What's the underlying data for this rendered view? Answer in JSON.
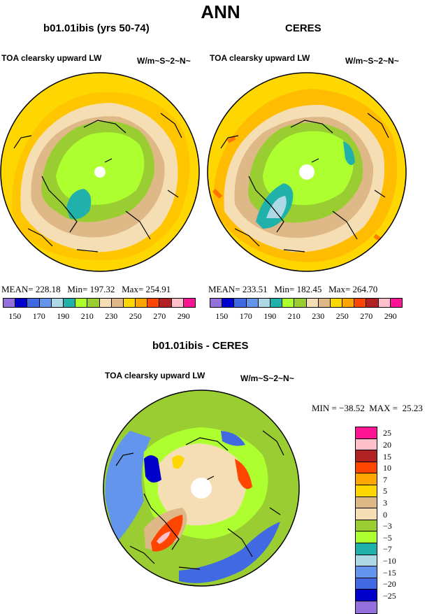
{
  "title": "ANN",
  "panels": [
    {
      "id": "model",
      "title": "b01.01ibis (yrs 50-74)",
      "variable": "TOA clearsky upward LW",
      "units": "W/m~S~2~N~",
      "stats": "MEAN= 228.18   Min= 197.32   Max= 254.91"
    },
    {
      "id": "obs",
      "title": "CERES",
      "variable": "TOA clearsky upward LW",
      "units": "W/m~S~2~N~",
      "stats": "MEAN= 233.51   Min= 182.45   Max= 264.70"
    },
    {
      "id": "diff",
      "title": "b01.01ibis - CERES",
      "variable": "TOA clearsky upward LW",
      "units": "W/m~S~2~N~",
      "stats": "MIN = −38.52  MAX =  25.23"
    }
  ],
  "colorbar_abs": {
    "colors": [
      "#9370db",
      "#0000cd",
      "#4169e1",
      "#6495ed",
      "#add8e6",
      "#20b2aa",
      "#adff2f",
      "#9acd32",
      "#f5deb3",
      "#deb887",
      "#ffd700",
      "#ffa500",
      "#ff4500",
      "#b22222",
      "#ffc0cb",
      "#ff1493"
    ],
    "labels": [
      "150",
      "170",
      "190",
      "210",
      "230",
      "250",
      "270",
      "290"
    ]
  },
  "colorbar_diff": {
    "colors": [
      "#ff1493",
      "#ffc0cb",
      "#b22222",
      "#ff4500",
      "#ffa500",
      "#ffd700",
      "#deb887",
      "#f5deb3",
      "#9acd32",
      "#adff2f",
      "#20b2aa",
      "#add8e6",
      "#6495ed",
      "#4169e1",
      "#0000cd",
      "#9370db"
    ],
    "labels": [
      "25",
      "20",
      "15",
      "10",
      "7",
      "5",
      "3",
      "0",
      "−3",
      "−5",
      "−7",
      "−10",
      "−15",
      "−20",
      "−25"
    ]
  }
}
